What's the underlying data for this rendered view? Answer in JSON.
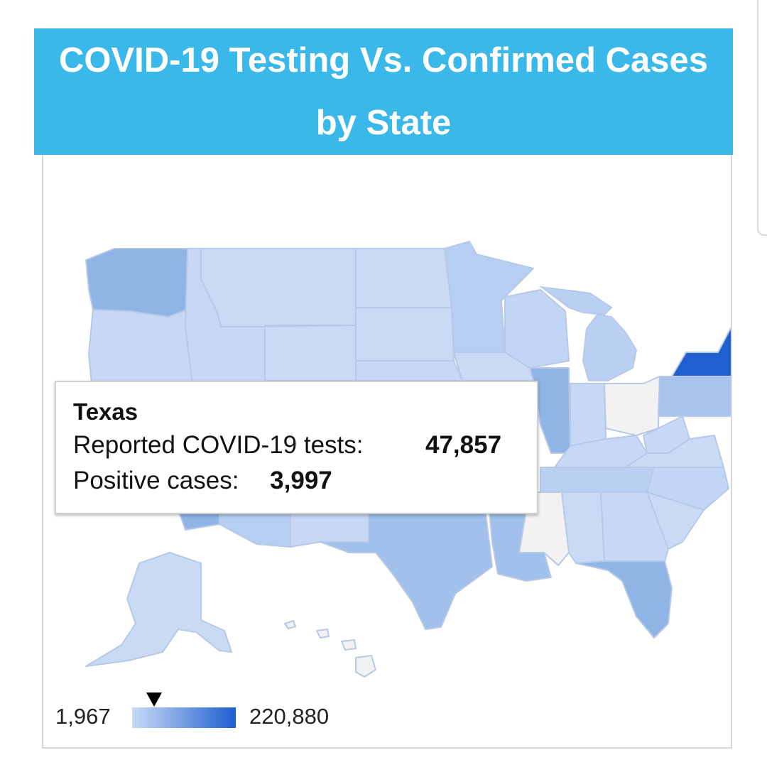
{
  "title": "COVID-19 Testing Vs. Confirmed Cases by State",
  "tooltip": {
    "state": "Texas",
    "tests_label": "Reported COVID-19 tests:",
    "tests_value": "47,857",
    "cases_label": "Positive cases:",
    "cases_value": "3,997"
  },
  "legend": {
    "min": "1,967",
    "max": "220,880",
    "min_value": 1967,
    "max_value": 220880,
    "marker_value": 47857,
    "color_low": "#c9daf5",
    "color_high": "#1f5fd0"
  },
  "colors": {
    "header_bg": "#3bb8ea",
    "no_data": "#f2f2f2",
    "state_border": "#b7c9e6"
  }
}
